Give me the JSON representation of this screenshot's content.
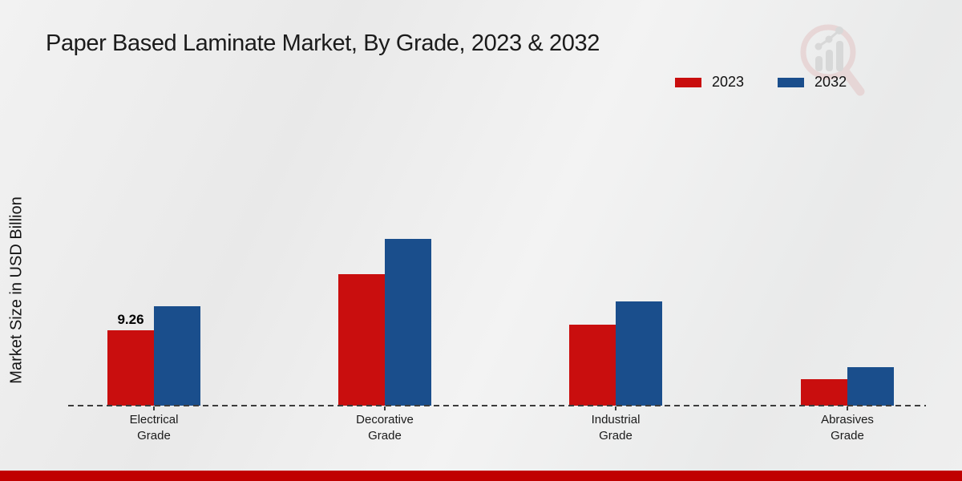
{
  "chart_data": {
    "type": "bar",
    "title": "Paper Based Laminate Market, By Grade, 2023 & 2032",
    "ylabel": "Market Size in USD Billion",
    "xlabel": "",
    "categories": [
      "Electrical Grade",
      "Decorative Grade",
      "Industrial Grade",
      "Abrasives Grade"
    ],
    "series": [
      {
        "name": "2023",
        "color": "#c90e0e",
        "values": [
          9.26,
          16.2,
          9.95,
          3.3
        ]
      },
      {
        "name": "2032",
        "color": "#1a4e8c",
        "values": [
          12.2,
          20.5,
          12.8,
          4.7
        ]
      }
    ],
    "annotations": [
      {
        "series": "2023",
        "category_index": 0,
        "text": "9.26"
      }
    ],
    "legend_position": "top-right",
    "grid": false,
    "baseline_style": "dashed",
    "ylim": [
      0,
      22
    ]
  },
  "branding": {
    "watermark": "magnifier-chart-logo",
    "footer_color": "#c00000",
    "watermark_ring_color": "#e3c5c5",
    "watermark_bars_color": "#c7c7c7"
  }
}
